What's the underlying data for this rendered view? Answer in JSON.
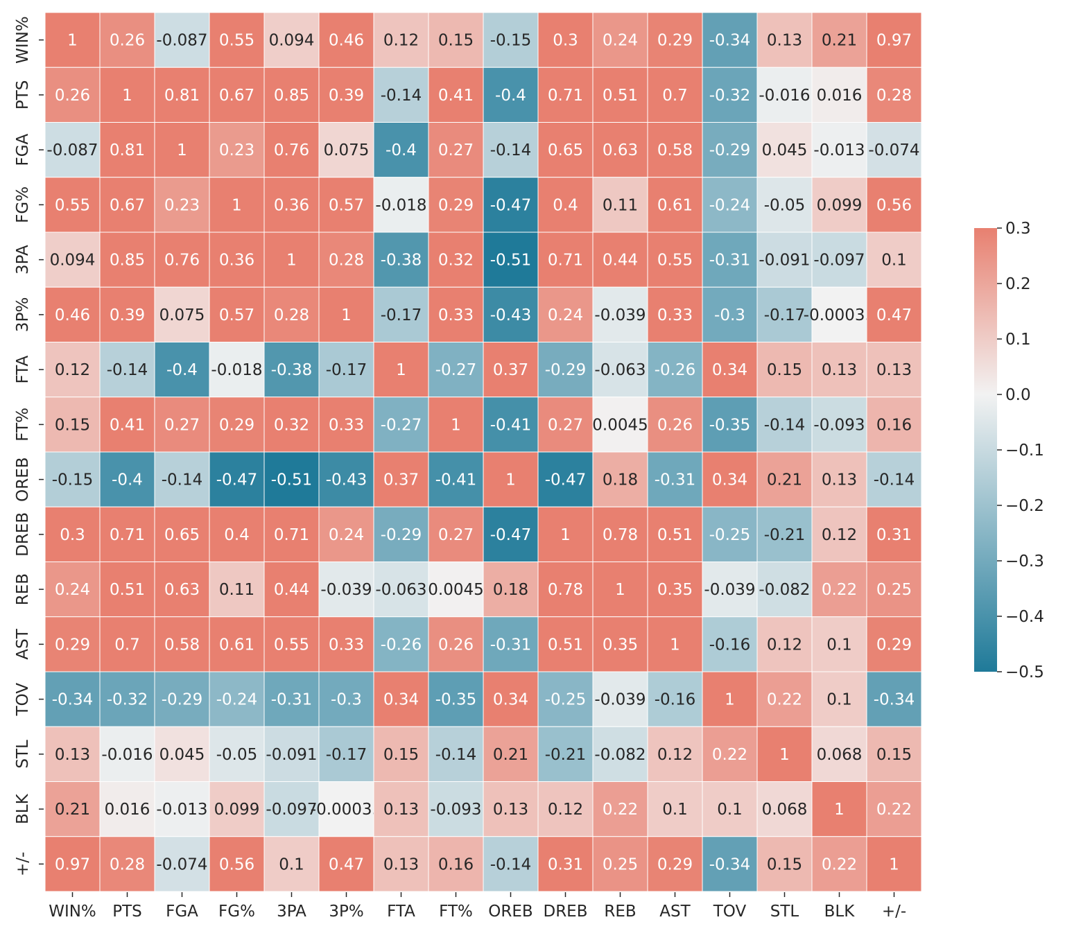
{
  "chart_data": {
    "type": "heatmap",
    "title": "",
    "xlabel": "",
    "ylabel": "",
    "labels": [
      "WIN%",
      "PTS",
      "FGA",
      "FG%",
      "3PA",
      "3P%",
      "FTA",
      "FT%",
      "OREB",
      "DREB",
      "REB",
      "AST",
      "TOV",
      "STL",
      "BLK",
      "+/-"
    ],
    "values": [
      [
        "1",
        "0.26",
        "-0.087",
        "0.55",
        "0.094",
        "0.46",
        "0.12",
        "0.15",
        "-0.15",
        "0.3",
        "0.24",
        "0.29",
        "-0.34",
        "0.13",
        "0.21",
        "0.97"
      ],
      [
        "0.26",
        "1",
        "0.81",
        "0.67",
        "0.85",
        "0.39",
        "-0.14",
        "0.41",
        "-0.4",
        "0.71",
        "0.51",
        "0.7",
        "-0.32",
        "-0.016",
        "0.016",
        "0.28"
      ],
      [
        "-0.087",
        "0.81",
        "1",
        "0.23",
        "0.76",
        "0.075",
        "-0.4",
        "0.27",
        "-0.14",
        "0.65",
        "0.63",
        "0.58",
        "-0.29",
        "0.045",
        "-0.013",
        "-0.074"
      ],
      [
        "0.55",
        "0.67",
        "0.23",
        "1",
        "0.36",
        "0.57",
        "-0.018",
        "0.29",
        "-0.47",
        "0.4",
        "0.11",
        "0.61",
        "-0.24",
        "-0.05",
        "0.099",
        "0.56"
      ],
      [
        "0.094",
        "0.85",
        "0.76",
        "0.36",
        "1",
        "0.28",
        "-0.38",
        "0.32",
        "-0.51",
        "0.71",
        "0.44",
        "0.55",
        "-0.31",
        "-0.091",
        "-0.097",
        "0.1"
      ],
      [
        "0.46",
        "0.39",
        "0.075",
        "0.57",
        "0.28",
        "1",
        "-0.17",
        "0.33",
        "-0.43",
        "0.24",
        "-0.039",
        "0.33",
        "-0.3",
        "-0.17",
        "-0.00033",
        "0.47"
      ],
      [
        "0.12",
        "-0.14",
        "-0.4",
        "-0.018",
        "-0.38",
        "-0.17",
        "1",
        "-0.27",
        "0.37",
        "-0.29",
        "-0.063",
        "-0.26",
        "0.34",
        "0.15",
        "0.13",
        "0.13"
      ],
      [
        "0.15",
        "0.41",
        "0.27",
        "0.29",
        "0.32",
        "0.33",
        "-0.27",
        "1",
        "-0.41",
        "0.27",
        "0.0045",
        "0.26",
        "-0.35",
        "-0.14",
        "-0.093",
        "0.16"
      ],
      [
        "-0.15",
        "-0.4",
        "-0.14",
        "-0.47",
        "-0.51",
        "-0.43",
        "0.37",
        "-0.41",
        "1",
        "-0.47",
        "0.18",
        "-0.31",
        "0.34",
        "0.21",
        "0.13",
        "-0.14"
      ],
      [
        "0.3",
        "0.71",
        "0.65",
        "0.4",
        "0.71",
        "0.24",
        "-0.29",
        "0.27",
        "-0.47",
        "1",
        "0.78",
        "0.51",
        "-0.25",
        "-0.21",
        "0.12",
        "0.31"
      ],
      [
        "0.24",
        "0.51",
        "0.63",
        "0.11",
        "0.44",
        "-0.039",
        "-0.063",
        "0.0045",
        "0.18",
        "0.78",
        "1",
        "0.35",
        "-0.039",
        "-0.082",
        "0.22",
        "0.25"
      ],
      [
        "0.29",
        "0.7",
        "0.58",
        "0.61",
        "0.55",
        "0.33",
        "-0.26",
        "0.26",
        "-0.31",
        "0.51",
        "0.35",
        "1",
        "-0.16",
        "0.12",
        "0.1",
        "0.29"
      ],
      [
        "-0.34",
        "-0.32",
        "-0.29",
        "-0.24",
        "-0.31",
        "-0.3",
        "0.34",
        "-0.35",
        "0.34",
        "-0.25",
        "-0.039",
        "-0.16",
        "1",
        "0.22",
        "0.1",
        "-0.34"
      ],
      [
        "0.13",
        "-0.016",
        "0.045",
        "-0.05",
        "-0.091",
        "-0.17",
        "0.15",
        "-0.14",
        "0.21",
        "-0.21",
        "-0.082",
        "0.12",
        "0.22",
        "1",
        "0.068",
        "0.15"
      ],
      [
        "0.21",
        "0.016",
        "-0.013",
        "0.099",
        "-0.097",
        "-0.00033",
        "0.13",
        "-0.093",
        "0.13",
        "0.12",
        "0.22",
        "0.1",
        "0.1",
        "0.068",
        "1",
        "0.22"
      ],
      [
        "0.97",
        "0.28",
        "-0.074",
        "0.56",
        "0.1",
        "0.47",
        "0.13",
        "0.16",
        "-0.14",
        "0.31",
        "0.25",
        "0.29",
        "-0.34",
        "0.15",
        "0.22",
        "1"
      ]
    ],
    "colorbar": {
      "vmin": -0.5,
      "vmax": 0.3,
      "ticks": [
        "0.3",
        "0.2",
        "0.1",
        "0.0",
        "−0.1",
        "−0.2",
        "−0.3",
        "−0.4",
        "−0.5"
      ],
      "tick_values": [
        0.3,
        0.2,
        0.1,
        0.0,
        -0.1,
        -0.2,
        -0.3,
        -0.4,
        -0.5
      ],
      "low_color": "#1f7a99",
      "mid_color": "#f2f2f2",
      "high_color": "#e88070"
    },
    "grid": true,
    "legend": "colorbar-right"
  }
}
